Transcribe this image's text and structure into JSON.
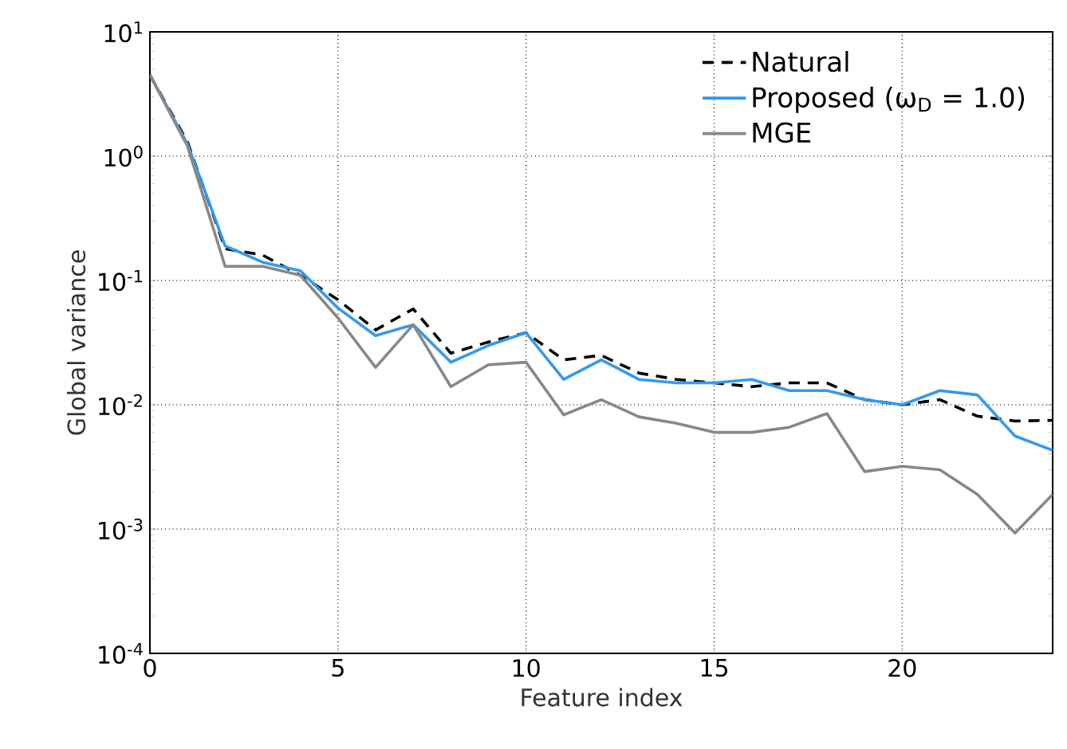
{
  "chart_data": {
    "type": "line",
    "xlabel": "Feature index",
    "ylabel": "Global variance",
    "log": "y",
    "grid": true,
    "legend": "top right",
    "xlim": [
      0,
      24
    ],
    "xticks": [
      0,
      5,
      10,
      15,
      20
    ],
    "ylim": [
      0.0001,
      10
    ],
    "yticks": [
      {
        "value": 0.0001,
        "label": "10$^{-4}$"
      },
      {
        "value": 0.001,
        "label": "10$^{-3}$"
      },
      {
        "value": 0.01,
        "label": "10$^{-2}$"
      },
      {
        "value": 0.1,
        "label": "10$^{-1}$"
      },
      {
        "value": 1,
        "label": "10$^{0}$"
      },
      {
        "value": 10,
        "label": "10$^{1}$"
      }
    ],
    "x": [
      0,
      1,
      2,
      3,
      4,
      5,
      6,
      7,
      8,
      9,
      10,
      11,
      12,
      13,
      14,
      15,
      16,
      17,
      18,
      19,
      20,
      21,
      22,
      23,
      24
    ],
    "series": [
      {
        "name": "Natural",
        "color": "#000000",
        "line_style": "dashed",
        "values": [
          4.5,
          1.3,
          0.18,
          0.16,
          0.11,
          0.07,
          0.04,
          0.059,
          0.026,
          0.032,
          0.038,
          0.023,
          0.025,
          0.018,
          0.016,
          0.015,
          0.014,
          0.015,
          0.015,
          0.011,
          0.01,
          0.011,
          0.0081,
          0.0074,
          0.0075
        ]
      },
      {
        "name": "Proposed (ω$_{D}$ = 1.0)",
        "color": "#3399ee",
        "line_style": "solid",
        "values": [
          4.5,
          1.25,
          0.19,
          0.14,
          0.12,
          0.06,
          0.036,
          0.044,
          0.022,
          0.03,
          0.038,
          0.016,
          0.023,
          0.016,
          0.015,
          0.015,
          0.016,
          0.013,
          0.013,
          0.011,
          0.01,
          0.013,
          0.012,
          0.0056,
          0.0043
        ]
      },
      {
        "name": "MGE",
        "color": "#888888",
        "line_style": "solid",
        "values": [
          4.5,
          1.2,
          0.13,
          0.13,
          0.11,
          0.05,
          0.02,
          0.044,
          0.014,
          0.021,
          0.022,
          0.0083,
          0.011,
          0.008,
          0.0071,
          0.006,
          0.006,
          0.0066,
          0.0085,
          0.0029,
          0.0032,
          0.003,
          0.0019,
          0.00093,
          0.0019
        ]
      }
    ]
  }
}
